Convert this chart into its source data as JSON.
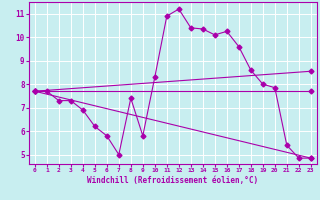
{
  "xlabel": "Windchill (Refroidissement éolien,°C)",
  "bg_color": "#c8eef0",
  "line_color": "#aa00aa",
  "grid_color": "#ffffff",
  "xlim": [
    -0.5,
    23.5
  ],
  "ylim": [
    4.6,
    11.5
  ],
  "xticks": [
    0,
    1,
    2,
    3,
    4,
    5,
    6,
    7,
    8,
    9,
    10,
    11,
    12,
    13,
    14,
    15,
    16,
    17,
    18,
    19,
    20,
    21,
    22,
    23
  ],
  "yticks": [
    5,
    6,
    7,
    8,
    9,
    10,
    11
  ],
  "line1_x": [
    0,
    1,
    2,
    3,
    4,
    5,
    6,
    7,
    8,
    9,
    10,
    11,
    12,
    13,
    14,
    15,
    16,
    17,
    18,
    19,
    20,
    21,
    22,
    23
  ],
  "line1_y": [
    7.7,
    7.7,
    7.3,
    7.3,
    6.9,
    6.2,
    5.8,
    5.0,
    7.4,
    5.8,
    8.3,
    10.9,
    11.2,
    10.4,
    10.35,
    10.1,
    10.25,
    9.6,
    8.6,
    8.0,
    7.85,
    5.4,
    4.85,
    4.85
  ],
  "line2_x": [
    0,
    23
  ],
  "line2_y": [
    7.7,
    8.55
  ],
  "line3_x": [
    0,
    23
  ],
  "line3_y": [
    7.7,
    7.7
  ],
  "line4_x": [
    0,
    23
  ],
  "line4_y": [
    7.7,
    4.85
  ],
  "marker_size": 2.5
}
